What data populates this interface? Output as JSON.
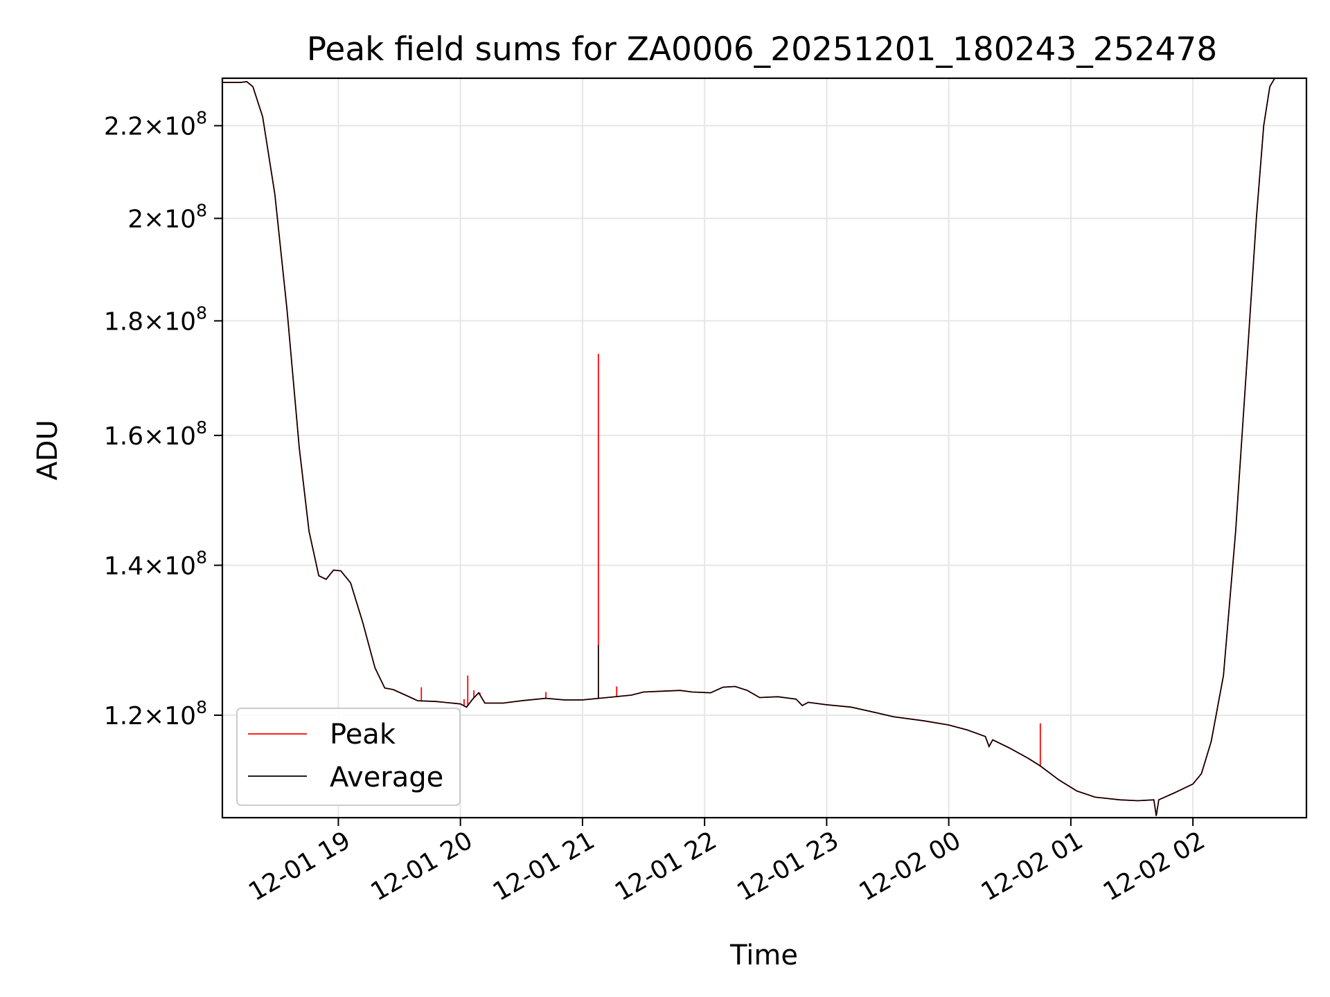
{
  "chart_data": {
    "type": "line",
    "title": "Peak field sums for ZA0006_20251201_180243_252478",
    "xlabel": "Time",
    "ylabel": "ADU",
    "yscale": "log",
    "ylim": [
      108000000,
      231000000
    ],
    "xlim": [
      18.05,
      26.93
    ],
    "grid": true,
    "legend_location": "lower-left",
    "x_ticks": [
      {
        "x": 19,
        "label": "12-01 19"
      },
      {
        "x": 20,
        "label": "12-01 20"
      },
      {
        "x": 21,
        "label": "12-01 21"
      },
      {
        "x": 22,
        "label": "12-01 22"
      },
      {
        "x": 23,
        "label": "12-01 23"
      },
      {
        "x": 24,
        "label": "12-02 00"
      },
      {
        "x": 25,
        "label": "12-02 01"
      },
      {
        "x": 26,
        "label": "12-02 02"
      }
    ],
    "y_ticks": [
      {
        "value": 120000000,
        "mantissa": "1.2",
        "base": "10",
        "exponent": "8"
      },
      {
        "value": 140000000,
        "mantissa": "1.4",
        "base": "10",
        "exponent": "8"
      },
      {
        "value": 160000000,
        "mantissa": "1.6",
        "base": "10",
        "exponent": "8"
      },
      {
        "value": 180000000,
        "mantissa": "1.8",
        "base": "10",
        "exponent": "8"
      },
      {
        "value": 200000000,
        "mantissa": "2",
        "base": "10",
        "exponent": "8"
      },
      {
        "value": 220000000,
        "mantissa": "2.2",
        "base": "10",
        "exponent": "8"
      }
    ],
    "series": [
      {
        "name": "Average",
        "color": "#000000",
        "points": [
          [
            18.05,
            230000000
          ],
          [
            18.2,
            230000000
          ],
          [
            18.25,
            230200000
          ],
          [
            18.3,
            229000000
          ],
          [
            18.38,
            222000000
          ],
          [
            18.48,
            205000000
          ],
          [
            18.58,
            182000000
          ],
          [
            18.68,
            158000000
          ],
          [
            18.76,
            145000000
          ],
          [
            18.84,
            138500000
          ],
          [
            18.9,
            138000000
          ],
          [
            18.96,
            139300000
          ],
          [
            19.02,
            139200000
          ],
          [
            19.1,
            137500000
          ],
          [
            19.2,
            132000000
          ],
          [
            19.3,
            126000000
          ],
          [
            19.38,
            123400000
          ],
          [
            19.45,
            123200000
          ],
          [
            19.55,
            122500000
          ],
          [
            19.65,
            121800000
          ],
          [
            19.8,
            121700000
          ],
          [
            20.0,
            121400000
          ],
          [
            20.05,
            121000000
          ],
          [
            20.1,
            122000000
          ],
          [
            20.15,
            122800000
          ],
          [
            20.2,
            121500000
          ],
          [
            20.35,
            121500000
          ],
          [
            20.5,
            121800000
          ],
          [
            20.7,
            122100000
          ],
          [
            20.85,
            121900000
          ],
          [
            21.0,
            121900000
          ],
          [
            21.2,
            122200000
          ],
          [
            21.4,
            122500000
          ],
          [
            21.5,
            122900000
          ],
          [
            21.65,
            123000000
          ],
          [
            21.8,
            123100000
          ],
          [
            21.9,
            122900000
          ],
          [
            22.05,
            122800000
          ],
          [
            22.15,
            123500000
          ],
          [
            22.25,
            123600000
          ],
          [
            22.35,
            123100000
          ],
          [
            22.45,
            122200000
          ],
          [
            22.6,
            122300000
          ],
          [
            22.75,
            122000000
          ],
          [
            22.8,
            121200000
          ],
          [
            22.85,
            121600000
          ],
          [
            23.0,
            121300000
          ],
          [
            23.2,
            121000000
          ],
          [
            23.35,
            120500000
          ],
          [
            23.55,
            119800000
          ],
          [
            23.8,
            119300000
          ],
          [
            24.0,
            118800000
          ],
          [
            24.15,
            118200000
          ],
          [
            24.3,
            117400000
          ],
          [
            24.33,
            116200000
          ],
          [
            24.36,
            117000000
          ],
          [
            24.5,
            116000000
          ],
          [
            24.65,
            114800000
          ],
          [
            24.75,
            113900000
          ],
          [
            24.9,
            112300000
          ],
          [
            25.05,
            111000000
          ],
          [
            25.2,
            110300000
          ],
          [
            25.4,
            110000000
          ],
          [
            25.55,
            109900000
          ],
          [
            25.68,
            110000000
          ],
          [
            25.7,
            108200000
          ],
          [
            25.72,
            110000000
          ],
          [
            25.85,
            110800000
          ],
          [
            26.0,
            111800000
          ],
          [
            26.07,
            113000000
          ],
          [
            26.15,
            116800000
          ],
          [
            26.25,
            125000000
          ],
          [
            26.35,
            145000000
          ],
          [
            26.45,
            175000000
          ],
          [
            26.52,
            200000000
          ],
          [
            26.58,
            220000000
          ],
          [
            26.63,
            229000000
          ],
          [
            26.67,
            231000000
          ],
          [
            26.93,
            231000000
          ]
        ]
      },
      {
        "name": "Peak",
        "color": "#ff0000",
        "spikes": [
          [
            19.68,
            123500000
          ],
          [
            20.03,
            122000000
          ],
          [
            20.06,
            125000000
          ],
          [
            20.11,
            123100000
          ],
          [
            20.16,
            122800000
          ],
          [
            20.7,
            122900000
          ],
          [
            21.13,
            174000000
          ],
          [
            21.28,
            123600000
          ],
          [
            24.75,
            119000000
          ]
        ]
      }
    ]
  }
}
